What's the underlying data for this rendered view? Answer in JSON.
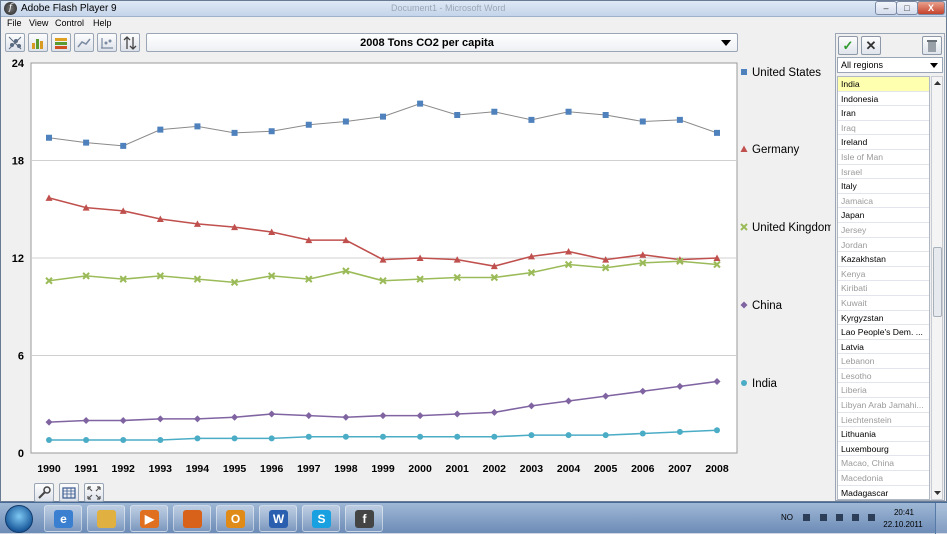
{
  "window": {
    "app_title": "Adobe Flash Player 9",
    "doc_title": "Document1 - Microsoft Word",
    "minimize_label": "–",
    "maximize_label": "□",
    "close_label": "X"
  },
  "menu": {
    "items": [
      "File",
      "View",
      "Control",
      "Help"
    ]
  },
  "toolbar": {
    "icons": [
      "scatter-view-icon",
      "bar-view-icon",
      "map-view-icon",
      "line-view-icon",
      "settings-view-icon",
      "sort-icon"
    ],
    "indicator": "2008 Tons CO2 per capita"
  },
  "bottom_tools": {
    "icons": [
      "wrench-icon",
      "table-icon",
      "fullscreen-icon"
    ]
  },
  "chart_data": {
    "type": "line",
    "title": "2008 Tons CO2 per capita",
    "x": [
      1990,
      1991,
      1992,
      1993,
      1994,
      1995,
      1996,
      1997,
      1998,
      1999,
      2000,
      2001,
      2002,
      2003,
      2004,
      2005,
      2006,
      2007,
      2008
    ],
    "ylim": [
      0,
      24
    ],
    "yticks": [
      0,
      6,
      12,
      18,
      24
    ],
    "grid": true,
    "legend_position": "right, next to line ends",
    "series": [
      {
        "name": "United States",
        "color": "#4f81bd",
        "marker": "square",
        "values": [
          19.4,
          19.1,
          18.9,
          19.9,
          20.1,
          19.7,
          19.8,
          20.2,
          20.4,
          20.7,
          21.5,
          20.8,
          21.0,
          20.5,
          21.0,
          20.8,
          20.4,
          20.5,
          19.7
        ]
      },
      {
        "name": "Germany",
        "color": "#c0504d",
        "marker": "triangle",
        "values": [
          15.7,
          15.1,
          14.9,
          14.4,
          14.1,
          13.9,
          13.6,
          13.1,
          13.1,
          11.9,
          12.0,
          11.9,
          11.5,
          12.1,
          12.4,
          11.9,
          12.2,
          11.9,
          12.0
        ]
      },
      {
        "name": "United Kingdom",
        "color": "#9bbb59",
        "marker": "x",
        "values": [
          10.6,
          10.9,
          10.7,
          10.9,
          10.7,
          10.5,
          10.9,
          10.7,
          11.2,
          10.6,
          10.7,
          10.8,
          10.8,
          11.1,
          11.6,
          11.4,
          11.7,
          11.8,
          11.6
        ]
      },
      {
        "name": "China",
        "color": "#8064a2",
        "marker": "diamond",
        "values": [
          1.9,
          2.0,
          2.0,
          2.1,
          2.1,
          2.2,
          2.4,
          2.3,
          2.2,
          2.3,
          2.3,
          2.4,
          2.5,
          2.9,
          3.2,
          3.5,
          3.8,
          4.1,
          4.4
        ]
      },
      {
        "name": "India",
        "color": "#4bacc6",
        "marker": "circle",
        "values": [
          0.8,
          0.8,
          0.8,
          0.8,
          0.9,
          0.9,
          0.9,
          1.0,
          1.0,
          1.0,
          1.0,
          1.0,
          1.0,
          1.1,
          1.1,
          1.1,
          1.2,
          1.3,
          1.4
        ]
      }
    ]
  },
  "sidepanel": {
    "region": "All regions",
    "countries": [
      {
        "name": "India",
        "active": true,
        "selected": true
      },
      {
        "name": "Indonesia",
        "active": true
      },
      {
        "name": "Iran",
        "active": true
      },
      {
        "name": "Iraq",
        "active": false
      },
      {
        "name": "Ireland",
        "active": true
      },
      {
        "name": "Isle of Man",
        "active": false
      },
      {
        "name": "Israel",
        "active": false
      },
      {
        "name": "Italy",
        "active": true
      },
      {
        "name": "Jamaica",
        "active": false
      },
      {
        "name": "Japan",
        "active": true
      },
      {
        "name": "Jersey",
        "active": false
      },
      {
        "name": "Jordan",
        "active": false
      },
      {
        "name": "Kazakhstan",
        "active": true
      },
      {
        "name": "Kenya",
        "active": false
      },
      {
        "name": "Kiribati",
        "active": false
      },
      {
        "name": "Kuwait",
        "active": false
      },
      {
        "name": "Kyrgyzstan",
        "active": true
      },
      {
        "name": "Lao People's Dem. ...",
        "active": true
      },
      {
        "name": "Latvia",
        "active": true
      },
      {
        "name": "Lebanon",
        "active": false
      },
      {
        "name": "Lesotho",
        "active": false
      },
      {
        "name": "Liberia",
        "active": false
      },
      {
        "name": "Libyan Arab Jamahi...",
        "active": false
      },
      {
        "name": "Liechtenstein",
        "active": false
      },
      {
        "name": "Lithuania",
        "active": true
      },
      {
        "name": "Luxembourg",
        "active": true
      },
      {
        "name": "Macao, China",
        "active": false
      },
      {
        "name": "Macedonia",
        "active": false
      },
      {
        "name": "Madagascar",
        "active": true
      }
    ]
  },
  "taskbar": {
    "apps": [
      {
        "name": "internet-explorer-icon",
        "color": "#3a7fd0",
        "glyph": "e"
      },
      {
        "name": "file-explorer-icon",
        "color": "#e0b040",
        "glyph": ""
      },
      {
        "name": "media-player-icon",
        "color": "#e07020",
        "glyph": "▶"
      },
      {
        "name": "firefox-icon",
        "color": "#d8621a",
        "glyph": ""
      },
      {
        "name": "outlook-icon",
        "color": "#e08a18",
        "glyph": "O"
      },
      {
        "name": "word-icon",
        "color": "#2a5fb0",
        "glyph": "W"
      },
      {
        "name": "skype-icon",
        "color": "#18a0e0",
        "glyph": "S"
      },
      {
        "name": "flash-player-icon",
        "color": "#444444",
        "glyph": "f"
      }
    ],
    "language": "NO",
    "time": "20:41",
    "date": "22.10.2011"
  }
}
